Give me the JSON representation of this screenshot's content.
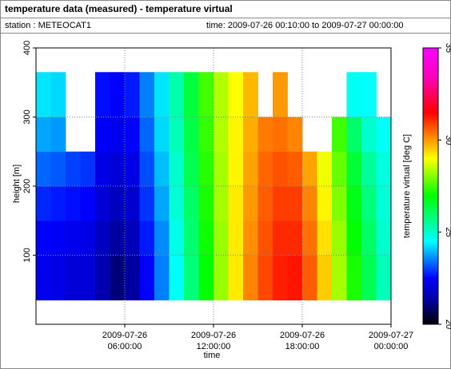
{
  "chart_data": {
    "type": "heatmap",
    "title": "temperature data (measured) - temperature virtual",
    "station_label": "station : METEOCAT1",
    "time_label": "time: 2009-07-26 00:10:00 to 2009-07-27 00:00:00",
    "x_label": "time",
    "y_label": "height [m]",
    "colorbar_label": "temperature virtual [deg C]",
    "xlim": [
      "2009-07-26 00:00:00",
      "2009-07-27 00:00:00"
    ],
    "xticks": [
      "2009-07-26 06:00:00",
      "2009-07-26 12:00:00",
      "2009-07-26 18:00:00",
      "2009-07-27 00:00:00"
    ],
    "ylim": [
      0,
      400
    ],
    "yticks": [
      100,
      200,
      300,
      400
    ],
    "zlim": [
      20,
      35
    ],
    "zticks": [
      20,
      25,
      30,
      35
    ],
    "colorscale": [
      [
        20,
        "#000000"
      ],
      [
        21.3,
        "#0000a0"
      ],
      [
        22.5,
        "#0000ff"
      ],
      [
        24.5,
        "#00ffff"
      ],
      [
        27,
        "#00ff00"
      ],
      [
        29,
        "#ffff00"
      ],
      [
        31.5,
        "#ff0000"
      ],
      [
        33.5,
        "#ff00c0"
      ],
      [
        35,
        "#ff00ff"
      ]
    ],
    "grid": true,
    "x_bins": [
      "2009-07-26 00:00:00",
      "2009-07-26 01:00:00",
      "2009-07-26 02:00:00",
      "2009-07-26 03:00:00",
      "2009-07-26 04:00:00",
      "2009-07-26 05:00:00",
      "2009-07-26 06:00:00",
      "2009-07-26 07:00:00",
      "2009-07-26 08:00:00",
      "2009-07-26 09:00:00",
      "2009-07-26 10:00:00",
      "2009-07-26 11:00:00",
      "2009-07-26 12:00:00",
      "2009-07-26 13:00:00",
      "2009-07-26 14:00:00",
      "2009-07-26 15:00:00",
      "2009-07-26 16:00:00",
      "2009-07-26 17:00:00",
      "2009-07-26 18:00:00",
      "2009-07-26 19:00:00",
      "2009-07-26 20:00:00",
      "2009-07-26 21:00:00",
      "2009-07-26 22:00:00",
      "2009-07-26 23:00:00",
      "2009-07-27 00:00:00"
    ],
    "y_bins": [
      35,
      100,
      150,
      200,
      250,
      300,
      365
    ],
    "z": [
      [
        22.3,
        22.2,
        22.0,
        22.0,
        21.5,
        21.0,
        21.3,
        22.5,
        23.5,
        24.6,
        25.8,
        27.0,
        28.2,
        29.2,
        30.2,
        30.8,
        31.2,
        31.3,
        30.6,
        29.5,
        28.3,
        27.2,
        26.2,
        25.2
      ],
      [
        22.5,
        22.4,
        22.3,
        22.2,
        21.7,
        21.3,
        21.6,
        22.7,
        23.6,
        24.7,
        25.9,
        27.1,
        28.2,
        29.2,
        30.1,
        30.7,
        31.1,
        31.1,
        30.4,
        29.3,
        28.2,
        27.0,
        26.0,
        25.0
      ],
      [
        22.8,
        22.7,
        22.6,
        22.5,
        22.0,
        21.7,
        21.9,
        22.9,
        23.8,
        24.9,
        26.0,
        27.2,
        28.3,
        29.2,
        30.0,
        30.6,
        30.9,
        30.9,
        30.2,
        29.1,
        28.0,
        26.8,
        25.8,
        24.9
      ],
      [
        23.3,
        23.2,
        23.0,
        22.9,
        22.2,
        22.0,
        22.2,
        23.1,
        24.0,
        25.0,
        26.2,
        27.3,
        28.3,
        29.1,
        29.9,
        30.5,
        30.7,
        30.6,
        29.9,
        28.9,
        27.8,
        26.5,
        25.5,
        24.8
      ],
      [
        23.8,
        23.7,
        null,
        null,
        22.4,
        22.3,
        22.5,
        23.3,
        24.2,
        25.2,
        26.3,
        27.4,
        28.4,
        29.1,
        29.8,
        30.3,
        30.4,
        30.2,
        null,
        null,
        27.5,
        26.0,
        25.0,
        24.6
      ],
      [
        24.3,
        24.2,
        null,
        null,
        22.6,
        22.5,
        22.7,
        23.5,
        24.3,
        25.3,
        26.4,
        27.5,
        28.4,
        29.0,
        29.7,
        null,
        30.0,
        null,
        null,
        null,
        null,
        24.6,
        24.5,
        null
      ]
    ]
  }
}
